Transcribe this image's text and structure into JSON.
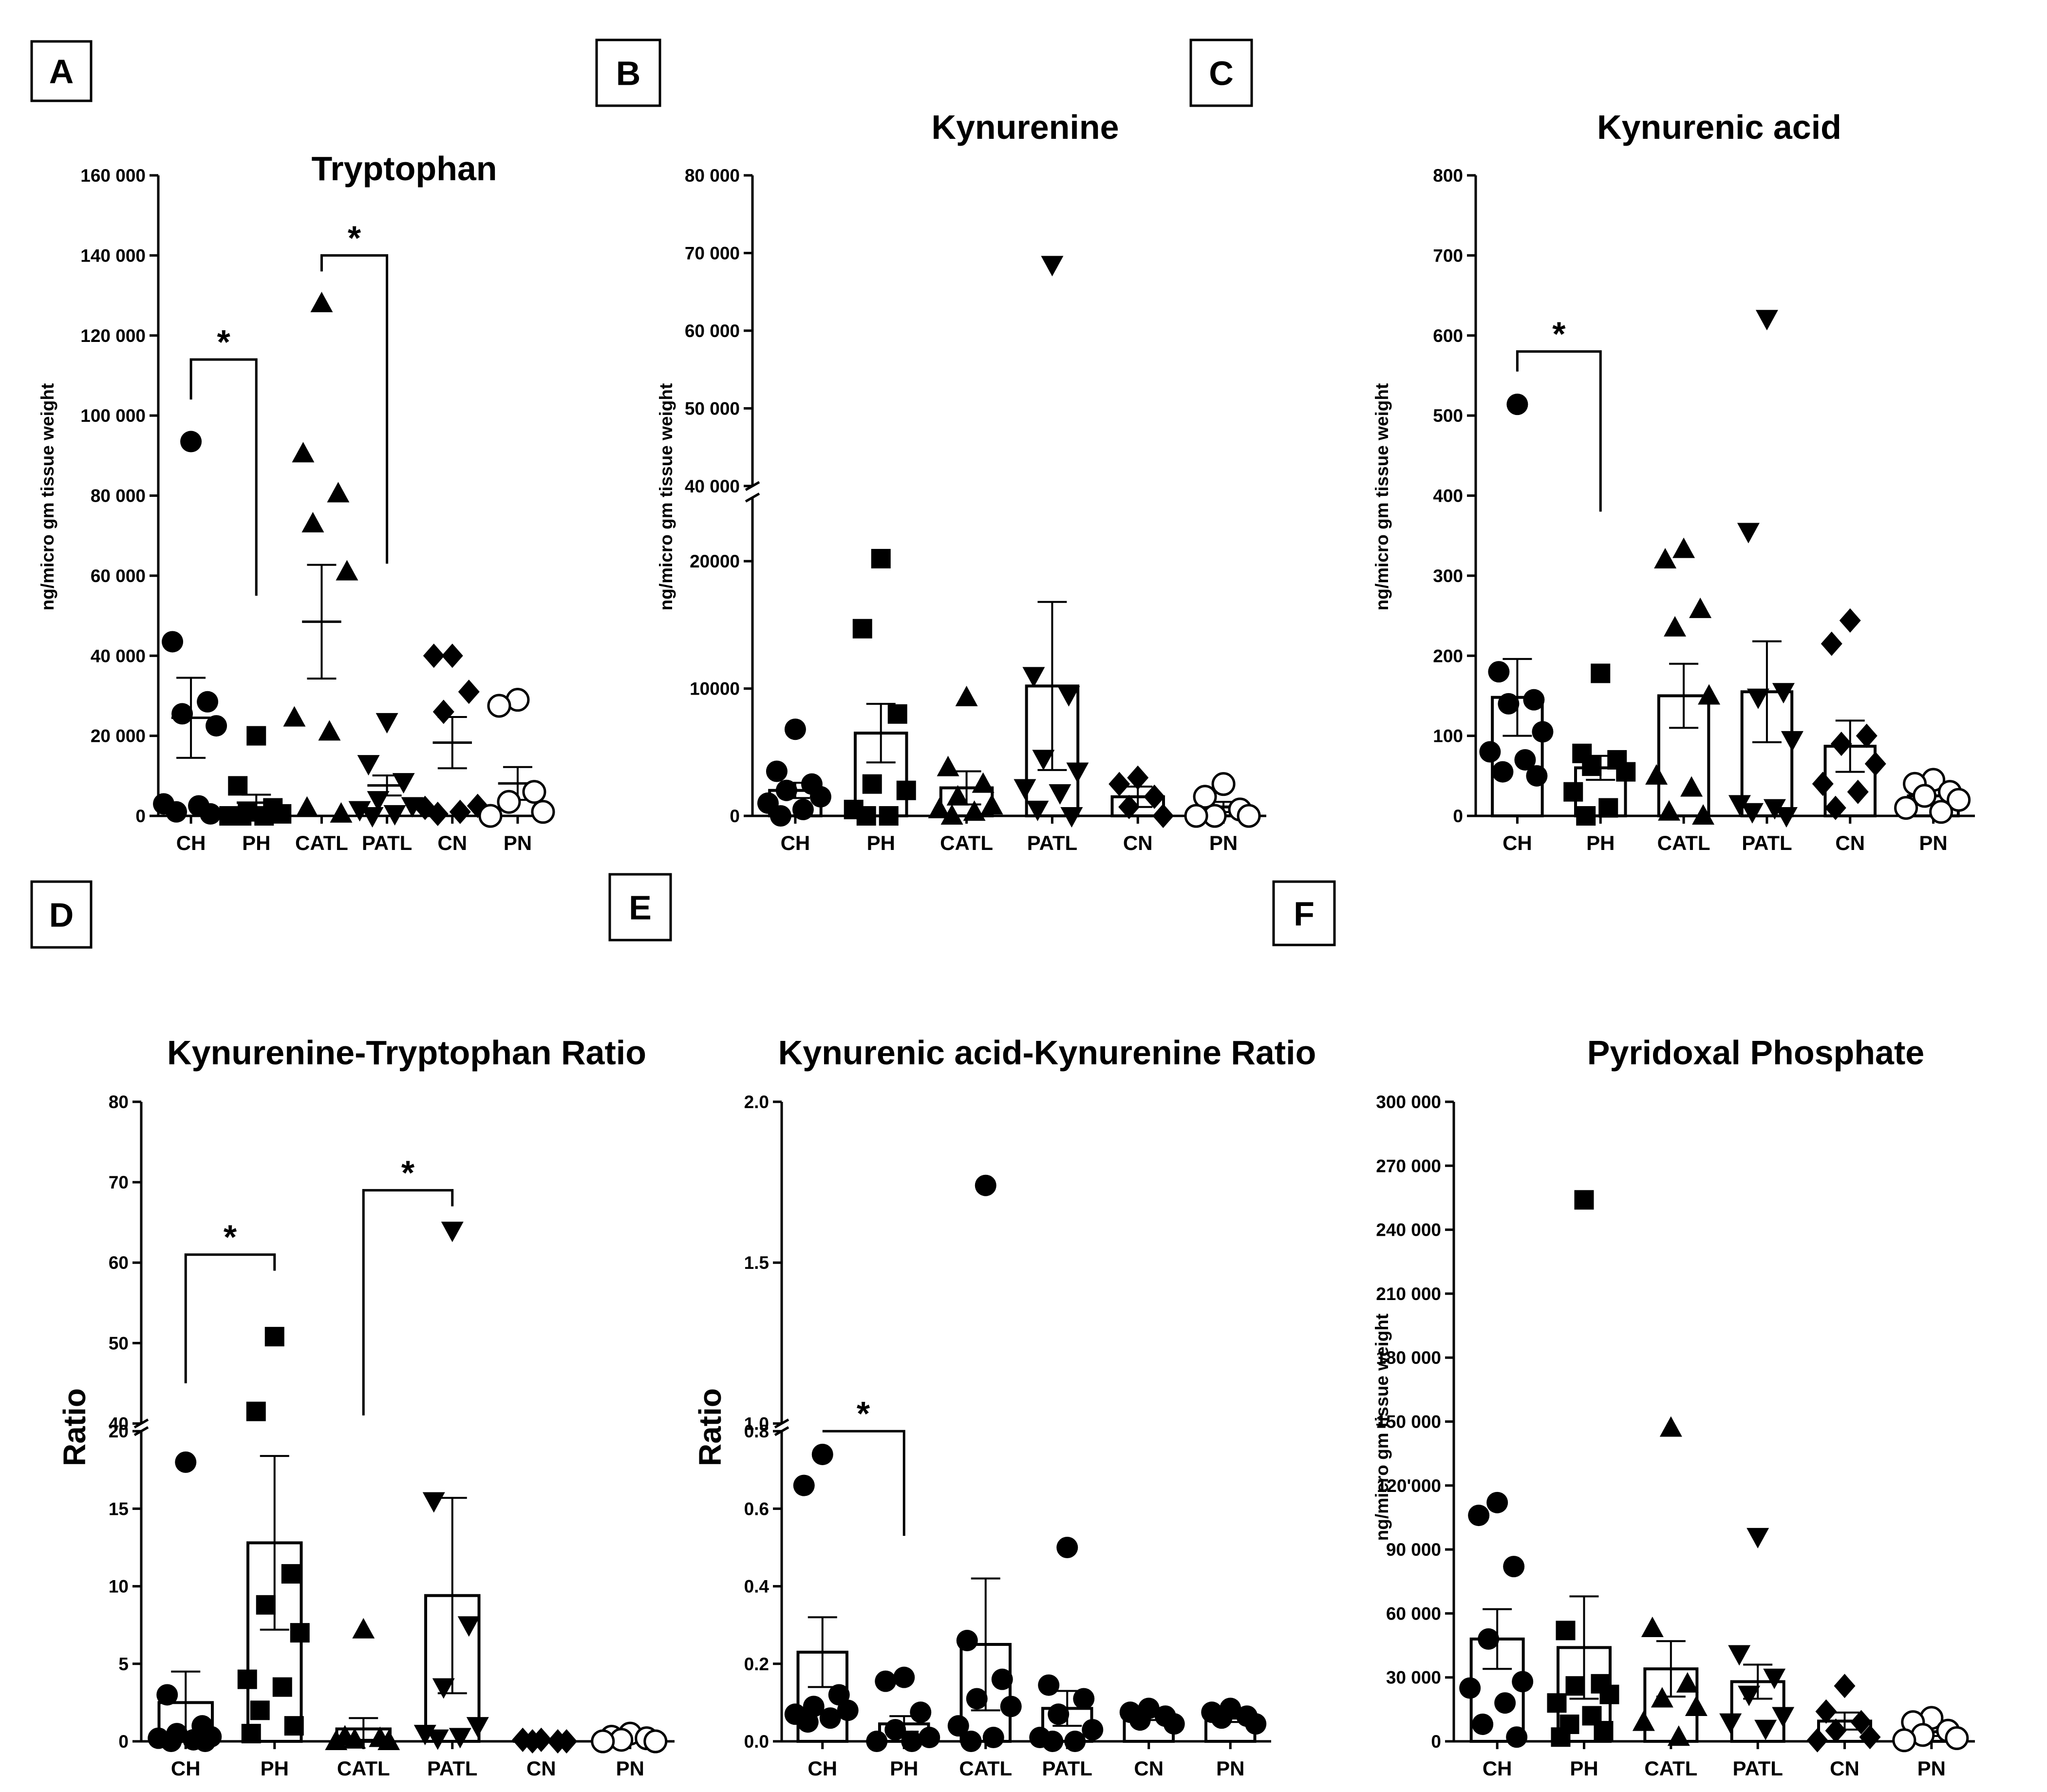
{
  "chart_data": [
    {
      "panel": "A",
      "type": "bar-scatter",
      "title": "Tryptophan",
      "ylabel": "ng/micro gm tissue weight",
      "categories": [
        "CH",
        "PH",
        "CATL",
        "PATL",
        "CN",
        "PN"
      ],
      "markers": [
        "circle",
        "square",
        "triangle",
        "triangle-down",
        "diamond",
        "open-circle"
      ],
      "show_bars": false,
      "ylim": [
        0,
        160000
      ],
      "yticks": [
        0,
        20000,
        40000,
        60000,
        80000,
        100000,
        120000,
        140000,
        160000
      ],
      "ytick_labels": [
        "0",
        "20 000",
        "40 000",
        "60 000",
        "80 000",
        "100 000",
        "120 000",
        "140 000",
        "160 000"
      ],
      "means": [
        24500,
        3300,
        48500,
        7600,
        18300,
        8100
      ],
      "sem": [
        10000,
        2000,
        14200,
        2500,
        6400,
        4100
      ],
      "points": [
        [
          93500,
          43500,
          28500,
          25500,
          22500,
          3000,
          2500,
          1000,
          500
        ],
        [
          20000,
          7500,
          2000,
          1000,
          500,
          0,
          0,
          0
        ],
        [
          128000,
          90500,
          80500,
          73000,
          61000,
          24500,
          21000,
          2000,
          500
        ],
        [
          23500,
          13000,
          8500,
          4000,
          2500,
          1500,
          500,
          0
        ],
        [
          40000,
          40000,
          31000,
          26000,
          2500,
          2000,
          1000,
          500
        ],
        [
          29000,
          27500,
          6000,
          3500,
          1000,
          0
        ]
      ],
      "significance": [
        {
          "from": "CH",
          "to": "PH",
          "top": 114000,
          "left_end": 104000,
          "right_end": 55000,
          "label": "*"
        },
        {
          "from": "CATL",
          "to": "PATL",
          "top": 140000,
          "left_end": 136000,
          "right_end": 63000,
          "label": "*"
        }
      ]
    },
    {
      "panel": "B",
      "type": "bar-scatter",
      "title": "Kynurenine",
      "ylabel": "ng/micro gm tissue weight",
      "categories": [
        "CH",
        "PH",
        "CATL",
        "PATL",
        "CN",
        "PN"
      ],
      "markers": [
        "circle",
        "square",
        "triangle",
        "triangle-down",
        "diamond",
        "open-circle"
      ],
      "show_bars": true,
      "axis_break": {
        "lower": [
          0,
          25000
        ],
        "upper": [
          40000,
          80000
        ]
      },
      "yticks": [
        0,
        10000,
        20000,
        40000,
        50000,
        60000,
        70000,
        80000
      ],
      "ytick_labels": [
        "0",
        "10000",
        "20000",
        "40 000",
        "50 000",
        "60 000",
        "70 000",
        "80 000"
      ],
      "means": [
        2000,
        6500,
        2200,
        10200,
        1500,
        700
      ],
      "sem": [
        600,
        2300,
        1300,
        6600,
        800,
        400
      ],
      "points": [
        [
          6800,
          3500,
          2500,
          2000,
          1500,
          1000,
          500,
          0
        ],
        [
          20200,
          14700,
          8000,
          2500,
          2000,
          500,
          0,
          0
        ],
        [
          9300,
          3800,
          2500,
          1500,
          800,
          500,
          300,
          0
        ],
        [
          68500,
          11000,
          9500,
          4500,
          3500,
          2200,
          1800,
          500,
          0
        ],
        [
          3000,
          2500,
          1500,
          700,
          0
        ],
        [
          2500,
          1500,
          500,
          0,
          0,
          0
        ]
      ],
      "significance": []
    },
    {
      "panel": "C",
      "type": "bar-scatter",
      "title": "Kynurenic acid",
      "ylabel": "ng/micro gm tissue weight",
      "categories": [
        "CH",
        "PH",
        "CATL",
        "PATL",
        "CN",
        "PN"
      ],
      "markers": [
        "circle",
        "square",
        "triangle",
        "triangle-down",
        "diamond",
        "open-circle"
      ],
      "show_bars": true,
      "ylim": [
        0,
        800
      ],
      "yticks": [
        0,
        100,
        200,
        300,
        400,
        500,
        600,
        700,
        800
      ],
      "ytick_labels": [
        "0",
        "100",
        "200",
        "300",
        "400",
        "500",
        "600",
        "700",
        "800"
      ],
      "means": [
        148,
        60,
        150,
        155,
        87,
        25
      ],
      "sem": [
        48,
        15,
        40,
        63,
        32,
        8
      ],
      "points": [
        [
          514,
          180,
          145,
          140,
          105,
          80,
          70,
          55,
          50
        ],
        [
          178,
          78,
          70,
          62,
          55,
          30,
          10,
          0
        ],
        [
          333,
          320,
          258,
          235,
          150,
          50,
          35,
          5,
          0
        ],
        [
          621,
          355,
          155,
          148,
          95,
          15,
          10,
          5,
          0
        ],
        [
          244,
          215,
          100,
          90,
          65,
          40,
          30,
          10
        ],
        [
          45,
          40,
          30,
          25,
          20,
          10,
          5
        ]
      ],
      "significance": [
        {
          "from": "CH",
          "to": "PH",
          "top": 580,
          "left_end": 555,
          "right_end": 380,
          "label": "*"
        }
      ]
    },
    {
      "panel": "D",
      "type": "bar-scatter",
      "title": "Kynurenine-Tryptophan Ratio",
      "ylabel": "Ratio",
      "categories": [
        "CH",
        "PH",
        "CATL",
        "PATL",
        "CN",
        "PN"
      ],
      "markers": [
        "circle",
        "square",
        "triangle",
        "triangle-down",
        "diamond",
        "open-circle"
      ],
      "show_bars": true,
      "axis_break": {
        "lower": [
          0,
          20
        ],
        "upper": [
          40,
          80
        ]
      },
      "yticks": [
        0,
        5,
        10,
        15,
        20,
        40,
        50,
        60,
        70,
        80
      ],
      "ytick_labels": [
        "0",
        "5",
        "10",
        "15",
        "20",
        "40",
        "50",
        "60",
        "70",
        "80"
      ],
      "means": [
        2.5,
        12.8,
        0.8,
        9.4,
        0.1,
        0.2
      ],
      "sem": [
        2.0,
        5.6,
        0.7,
        6.3,
        0.05,
        0.1
      ],
      "points": [
        [
          18,
          3,
          1,
          0.5,
          0.3,
          0.2,
          0.1,
          0,
          0
        ],
        [
          50.8,
          41.5,
          10.8,
          8.8,
          7,
          4,
          3.5,
          2,
          1,
          0.5
        ],
        [
          7.2,
          0.3,
          0.2,
          0.1,
          0,
          0
        ],
        [
          64,
          15.5,
          7.5,
          3.5,
          1,
          0.5,
          0.3,
          0.2
        ],
        [
          0.1,
          0.1,
          0,
          0,
          0
        ],
        [
          0.5,
          0.3,
          0.2,
          0.1,
          0,
          0
        ]
      ],
      "significance": [
        {
          "from": "CH",
          "to": "PH",
          "top": 61,
          "left_end": 45,
          "right_end": 59,
          "label": "*"
        },
        {
          "from": "CATL",
          "to": "PATL",
          "top": 69,
          "left_end": 41,
          "right_end": 67,
          "label": "*"
        }
      ]
    },
    {
      "panel": "E",
      "type": "bar-scatter",
      "title": "Kynurenic acid-Kynurenine Ratio",
      "ylabel": "Ratio",
      "categories": [
        "CH",
        "PH",
        "CATL",
        "PATL",
        "CN",
        "PN"
      ],
      "markers": [
        "circle",
        "circle",
        "circle",
        "circle",
        "circle",
        "circle"
      ],
      "show_bars": true,
      "axis_break": {
        "lower": [
          0,
          0.8
        ],
        "upper": [
          1.0,
          2.0
        ]
      },
      "yticks": [
        0,
        0.2,
        0.4,
        0.6,
        0.8,
        1.0,
        1.5,
        2.0
      ],
      "ytick_labels": [
        "0.0",
        "0.2",
        "0.4",
        "0.6",
        "0.8",
        "1.0",
        "1.5",
        "2.0"
      ],
      "means": [
        0.23,
        0.045,
        0.25,
        0.085,
        0.065,
        0.06
      ],
      "sem": [
        0.09,
        0.02,
        0.17,
        0.045,
        0.01,
        0.01
      ],
      "points": [
        [
          0.74,
          0.66,
          0.12,
          0.09,
          0.08,
          0.07,
          0.06,
          0.05
        ],
        [
          0.165,
          0.155,
          0.075,
          0.03,
          0.01,
          0,
          0
        ],
        [
          1.74,
          0.26,
          0.16,
          0.11,
          0.09,
          0.04,
          0.01,
          0
        ],
        [
          0.5,
          0.145,
          0.11,
          0.07,
          0.03,
          0.01,
          0,
          0
        ],
        [
          0.085,
          0.075,
          0.065,
          0.055,
          0.045
        ],
        [
          0.085,
          0.075,
          0.065,
          0.06,
          0.045
        ]
      ],
      "significance": [
        {
          "from": "CH",
          "to": "PH",
          "top": 0.88,
          "left_end": 0.82,
          "right_end": 0.53,
          "label": "*"
        }
      ]
    },
    {
      "panel": "F",
      "type": "bar-scatter",
      "title": "Pyridoxal Phosphate",
      "ylabel": "ng/micro gm tissue weight",
      "categories": [
        "CH",
        "PH",
        "CATL",
        "PATL",
        "CN",
        "PN"
      ],
      "markers": [
        "circle",
        "square",
        "triangle",
        "triangle-down",
        "diamond",
        "open-circle"
      ],
      "show_bars": true,
      "ylim": [
        0,
        300000
      ],
      "yticks": [
        0,
        30000,
        60000,
        90000,
        120000,
        150000,
        180000,
        210000,
        240000,
        270000,
        300000
      ],
      "ytick_labels": [
        "0",
        "30 000",
        "60 000",
        "90 000",
        "120'000",
        "150 000",
        "180 000",
        "210 000",
        "240 000",
        "270 000",
        "300 000"
      ],
      "means": [
        48000,
        44000,
        34000,
        28000,
        9500,
        4500
      ],
      "sem": [
        14000,
        24000,
        13000,
        8000,
        4000,
        2000
      ],
      "points": [
        [
          112000,
          106000,
          82000,
          48000,
          28000,
          25000,
          18000,
          8000,
          2000
        ],
        [
          254000,
          52000,
          27000,
          26000,
          22000,
          18000,
          12000,
          8000,
          5000,
          2000
        ],
        [
          147000,
          53000,
          27000,
          20000,
          16000,
          9000,
          2000
        ],
        [
          96000,
          41000,
          30000,
          22000,
          12000,
          9000,
          6000
        ],
        [
          26000,
          14000,
          9000,
          5000,
          2000,
          500
        ],
        [
          11000,
          9000,
          5000,
          3000,
          1500,
          500
        ]
      ],
      "significance": []
    }
  ],
  "panel_letters": [
    "A",
    "B",
    "C",
    "D",
    "E",
    "F"
  ]
}
